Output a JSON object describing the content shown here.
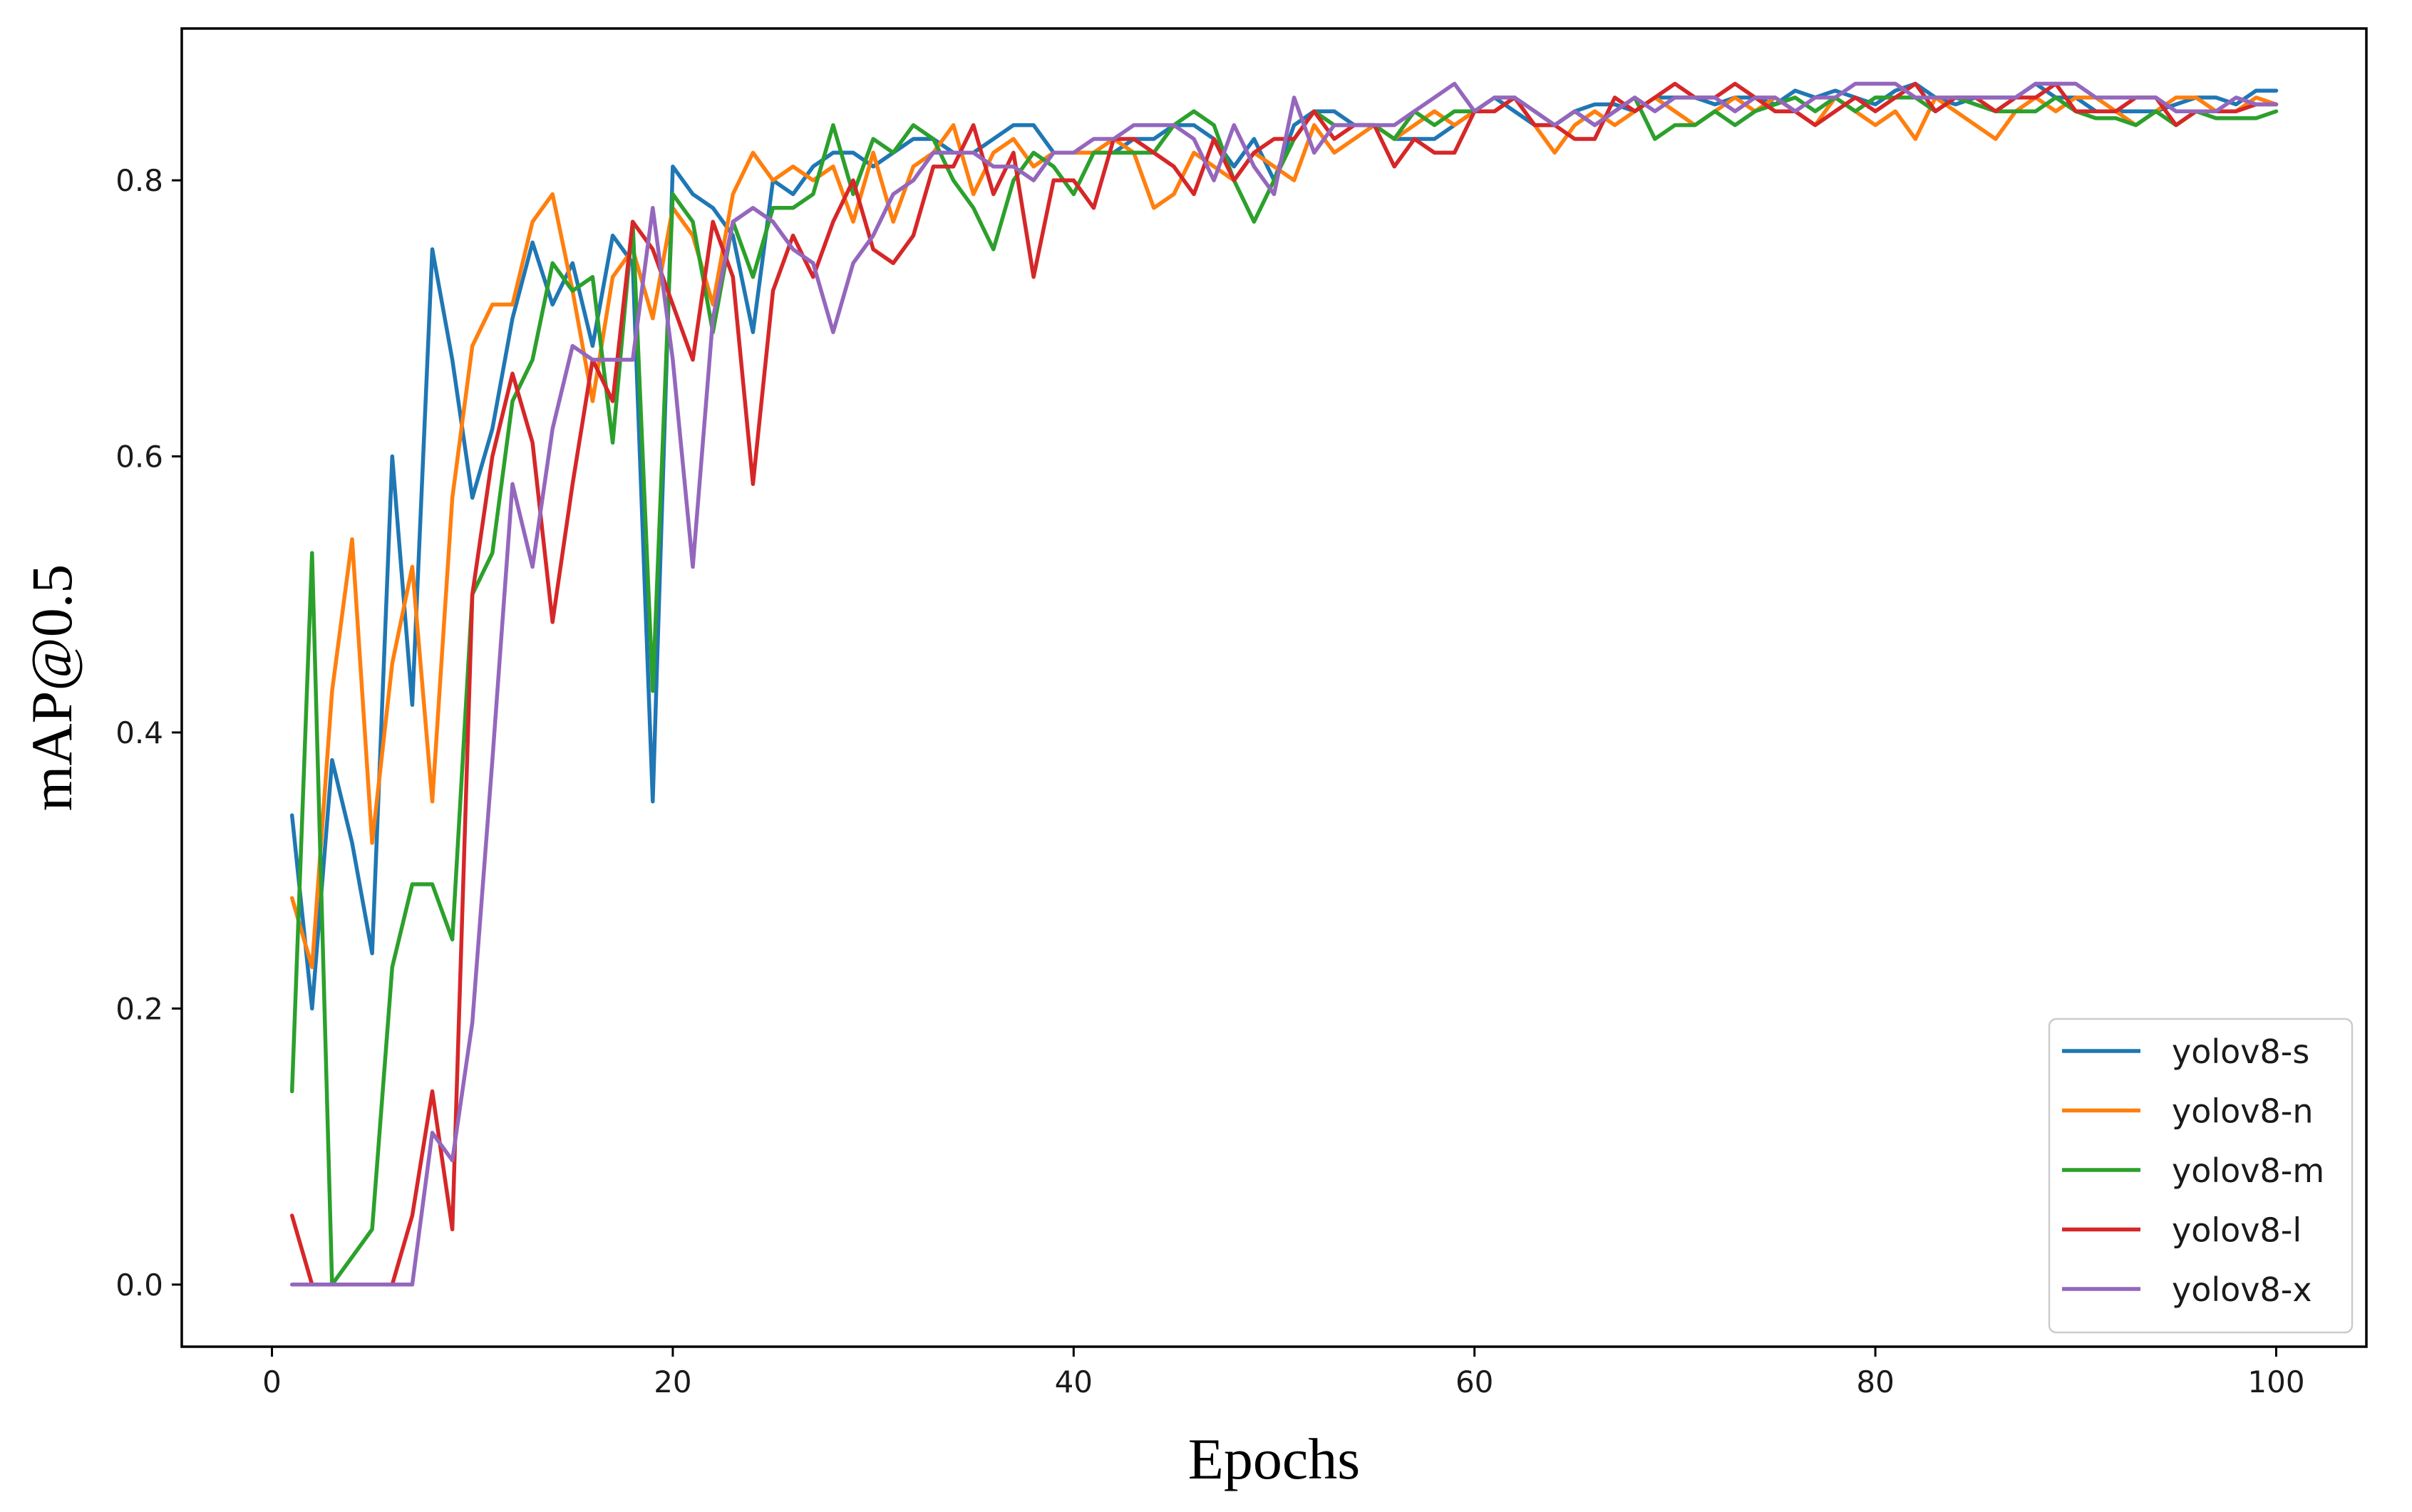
{
  "chart_data": {
    "type": "line",
    "title": "",
    "xlabel": "Epochs",
    "ylabel": "mAP@0.5",
    "xlim": [
      -4.5,
      104.5
    ],
    "ylim": [
      -0.045,
      0.91
    ],
    "xticks": [
      0,
      20,
      40,
      60,
      80,
      100
    ],
    "xtick_labels": [
      "0",
      "20",
      "40",
      "60",
      "80",
      "100"
    ],
    "yticks": [
      0.0,
      0.2,
      0.4,
      0.6,
      0.8
    ],
    "ytick_labels": [
      "0.0",
      "0.2",
      "0.4",
      "0.6",
      "0.8"
    ],
    "grid": false,
    "legend_position": "bottom-right",
    "series": [
      {
        "name": "yolov8-s",
        "color": "#1f77b4",
        "x": [
          1,
          2,
          3,
          4,
          5,
          6,
          7,
          8,
          9,
          10,
          11,
          12,
          13,
          14,
          15,
          16,
          17,
          18,
          19,
          20,
          21,
          22,
          23,
          24,
          25,
          26,
          27,
          28,
          29,
          30,
          31,
          32,
          33,
          34,
          35,
          36,
          37,
          38,
          39,
          40,
          41,
          42,
          43,
          44,
          45,
          46,
          47,
          48,
          49,
          50,
          51,
          52,
          53,
          54,
          55,
          56,
          57,
          58,
          59,
          60,
          61,
          62,
          63,
          64,
          65,
          66,
          67,
          68,
          69,
          70,
          71,
          72,
          73,
          74,
          75,
          76,
          77,
          78,
          79,
          80,
          81,
          82,
          83,
          84,
          85,
          86,
          87,
          88,
          89,
          90,
          91,
          92,
          93,
          94,
          95,
          96,
          97,
          98,
          99,
          100
        ],
        "values": [
          0.34,
          0.2,
          0.38,
          0.32,
          0.24,
          0.6,
          0.42,
          0.75,
          0.67,
          0.57,
          0.62,
          0.7,
          0.755,
          0.71,
          0.74,
          0.68,
          0.76,
          0.74,
          0.35,
          0.81,
          0.79,
          0.78,
          0.76,
          0.69,
          0.8,
          0.79,
          0.81,
          0.82,
          0.82,
          0.81,
          0.82,
          0.83,
          0.83,
          0.82,
          0.82,
          0.83,
          0.84,
          0.84,
          0.82,
          0.82,
          0.82,
          0.82,
          0.83,
          0.83,
          0.84,
          0.84,
          0.83,
          0.81,
          0.83,
          0.8,
          0.84,
          0.85,
          0.85,
          0.84,
          0.84,
          0.83,
          0.83,
          0.83,
          0.84,
          0.85,
          0.86,
          0.85,
          0.84,
          0.84,
          0.85,
          0.855,
          0.855,
          0.85,
          0.86,
          0.86,
          0.86,
          0.855,
          0.86,
          0.86,
          0.855,
          0.865,
          0.86,
          0.865,
          0.86,
          0.855,
          0.865,
          0.87,
          0.86,
          0.855,
          0.86,
          0.86,
          0.86,
          0.87,
          0.86,
          0.86,
          0.85,
          0.85,
          0.85,
          0.85,
          0.855,
          0.86,
          0.86,
          0.855,
          0.865,
          0.865
        ]
      },
      {
        "name": "yolov8-n",
        "color": "#ff7f0e",
        "x": [
          1,
          2,
          3,
          4,
          5,
          6,
          7,
          8,
          9,
          10,
          11,
          12,
          13,
          14,
          15,
          16,
          17,
          18,
          19,
          20,
          21,
          22,
          23,
          24,
          25,
          26,
          27,
          28,
          29,
          30,
          31,
          32,
          33,
          34,
          35,
          36,
          37,
          38,
          39,
          40,
          41,
          42,
          43,
          44,
          45,
          46,
          47,
          48,
          49,
          50,
          51,
          52,
          53,
          54,
          55,
          56,
          57,
          58,
          59,
          60,
          61,
          62,
          63,
          64,
          65,
          66,
          67,
          68,
          69,
          70,
          71,
          72,
          73,
          74,
          75,
          76,
          77,
          78,
          79,
          80,
          81,
          82,
          83,
          84,
          85,
          86,
          87,
          88,
          89,
          90,
          91,
          92,
          93,
          94,
          95,
          96,
          97,
          98,
          99,
          100
        ],
        "values": [
          0.28,
          0.23,
          0.43,
          0.54,
          0.32,
          0.45,
          0.52,
          0.35,
          0.57,
          0.68,
          0.71,
          0.71,
          0.77,
          0.79,
          0.72,
          0.64,
          0.73,
          0.75,
          0.7,
          0.78,
          0.76,
          0.71,
          0.79,
          0.82,
          0.8,
          0.81,
          0.8,
          0.81,
          0.77,
          0.82,
          0.77,
          0.81,
          0.82,
          0.84,
          0.79,
          0.82,
          0.83,
          0.81,
          0.82,
          0.82,
          0.82,
          0.83,
          0.82,
          0.78,
          0.79,
          0.82,
          0.81,
          0.8,
          0.82,
          0.81,
          0.8,
          0.84,
          0.82,
          0.83,
          0.84,
          0.83,
          0.84,
          0.85,
          0.84,
          0.85,
          0.85,
          0.86,
          0.84,
          0.82,
          0.84,
          0.85,
          0.84,
          0.85,
          0.86,
          0.85,
          0.84,
          0.85,
          0.86,
          0.85,
          0.86,
          0.85,
          0.84,
          0.86,
          0.85,
          0.84,
          0.85,
          0.83,
          0.86,
          0.85,
          0.84,
          0.83,
          0.85,
          0.86,
          0.85,
          0.86,
          0.86,
          0.85,
          0.84,
          0.85,
          0.86,
          0.86,
          0.85,
          0.85,
          0.86,
          0.855
        ]
      },
      {
        "name": "yolov8-m",
        "color": "#2ca02c",
        "x": [
          1,
          2,
          3,
          4,
          5,
          6,
          7,
          8,
          9,
          10,
          11,
          12,
          13,
          14,
          15,
          16,
          17,
          18,
          19,
          20,
          21,
          22,
          23,
          24,
          25,
          26,
          27,
          28,
          29,
          30,
          31,
          32,
          33,
          34,
          35,
          36,
          37,
          38,
          39,
          40,
          41,
          42,
          43,
          44,
          45,
          46,
          47,
          48,
          49,
          50,
          51,
          52,
          53,
          54,
          55,
          56,
          57,
          58,
          59,
          60,
          61,
          62,
          63,
          64,
          65,
          66,
          67,
          68,
          69,
          70,
          71,
          72,
          73,
          74,
          75,
          76,
          77,
          78,
          79,
          80,
          81,
          82,
          83,
          84,
          85,
          86,
          87,
          88,
          89,
          90,
          91,
          92,
          93,
          94,
          95,
          96,
          97,
          98,
          99,
          100
        ],
        "values": [
          0.14,
          0.53,
          0.0,
          0.02,
          0.04,
          0.23,
          0.29,
          0.29,
          0.25,
          0.5,
          0.53,
          0.64,
          0.67,
          0.74,
          0.72,
          0.73,
          0.61,
          0.77,
          0.43,
          0.79,
          0.77,
          0.69,
          0.77,
          0.73,
          0.78,
          0.78,
          0.79,
          0.84,
          0.79,
          0.83,
          0.82,
          0.84,
          0.83,
          0.8,
          0.78,
          0.75,
          0.8,
          0.82,
          0.81,
          0.79,
          0.82,
          0.82,
          0.82,
          0.82,
          0.84,
          0.85,
          0.84,
          0.8,
          0.77,
          0.8,
          0.83,
          0.85,
          0.84,
          0.84,
          0.84,
          0.83,
          0.85,
          0.84,
          0.85,
          0.85,
          0.85,
          0.86,
          0.85,
          0.84,
          0.85,
          0.84,
          0.85,
          0.86,
          0.83,
          0.84,
          0.84,
          0.85,
          0.84,
          0.85,
          0.855,
          0.86,
          0.85,
          0.86,
          0.85,
          0.86,
          0.86,
          0.86,
          0.85,
          0.86,
          0.855,
          0.85,
          0.85,
          0.85,
          0.86,
          0.85,
          0.845,
          0.845,
          0.84,
          0.85,
          0.84,
          0.85,
          0.845,
          0.845,
          0.845,
          0.85
        ]
      },
      {
        "name": "yolov8-l",
        "color": "#d62728",
        "x": [
          1,
          2,
          3,
          4,
          5,
          6,
          7,
          8,
          9,
          10,
          11,
          12,
          13,
          14,
          15,
          16,
          17,
          18,
          19,
          20,
          21,
          22,
          23,
          24,
          25,
          26,
          27,
          28,
          29,
          30,
          31,
          32,
          33,
          34,
          35,
          36,
          37,
          38,
          39,
          40,
          41,
          42,
          43,
          44,
          45,
          46,
          47,
          48,
          49,
          50,
          51,
          52,
          53,
          54,
          55,
          56,
          57,
          58,
          59,
          60,
          61,
          62,
          63,
          64,
          65,
          66,
          67,
          68,
          69,
          70,
          71,
          72,
          73,
          74,
          75,
          76,
          77,
          78,
          79,
          80,
          81,
          82,
          83,
          84,
          85,
          86,
          87,
          88,
          89,
          90,
          91,
          92,
          93,
          94,
          95,
          96,
          97,
          98,
          99,
          100
        ],
        "values": [
          0.05,
          0.0,
          0.0,
          0.0,
          0.0,
          0.0,
          0.05,
          0.14,
          0.04,
          0.5,
          0.6,
          0.66,
          0.61,
          0.48,
          0.58,
          0.67,
          0.64,
          0.77,
          0.75,
          0.71,
          0.67,
          0.77,
          0.73,
          0.58,
          0.72,
          0.76,
          0.73,
          0.77,
          0.8,
          0.75,
          0.74,
          0.76,
          0.81,
          0.81,
          0.84,
          0.79,
          0.82,
          0.73,
          0.8,
          0.8,
          0.78,
          0.83,
          0.83,
          0.82,
          0.81,
          0.79,
          0.83,
          0.8,
          0.82,
          0.83,
          0.83,
          0.85,
          0.83,
          0.84,
          0.84,
          0.81,
          0.83,
          0.82,
          0.82,
          0.85,
          0.85,
          0.86,
          0.84,
          0.84,
          0.83,
          0.83,
          0.86,
          0.85,
          0.86,
          0.87,
          0.86,
          0.86,
          0.87,
          0.86,
          0.85,
          0.85,
          0.84,
          0.85,
          0.86,
          0.85,
          0.86,
          0.87,
          0.85,
          0.86,
          0.86,
          0.85,
          0.86,
          0.86,
          0.87,
          0.85,
          0.85,
          0.85,
          0.86,
          0.86,
          0.84,
          0.85,
          0.85,
          0.85,
          0.855,
          0.855
        ]
      },
      {
        "name": "yolov8-x",
        "color": "#9467bd",
        "x": [
          1,
          2,
          3,
          4,
          5,
          6,
          7,
          8,
          9,
          10,
          11,
          12,
          13,
          14,
          15,
          16,
          17,
          18,
          19,
          20,
          21,
          22,
          23,
          24,
          25,
          26,
          27,
          28,
          29,
          30,
          31,
          32,
          33,
          34,
          35,
          36,
          37,
          38,
          39,
          40,
          41,
          42,
          43,
          44,
          45,
          46,
          47,
          48,
          49,
          50,
          51,
          52,
          53,
          54,
          55,
          56,
          57,
          58,
          59,
          60,
          61,
          62,
          63,
          64,
          65,
          66,
          67,
          68,
          69,
          70,
          71,
          72,
          73,
          74,
          75,
          76,
          77,
          78,
          79,
          80,
          81,
          82,
          83,
          84,
          85,
          86,
          87,
          88,
          89,
          90,
          91,
          92,
          93,
          94,
          95,
          96,
          97,
          98,
          99,
          100
        ],
        "values": [
          0.0,
          0.0,
          0.0,
          0.0,
          0.0,
          0.0,
          0.0,
          0.11,
          0.09,
          0.19,
          0.38,
          0.58,
          0.52,
          0.62,
          0.68,
          0.67,
          0.67,
          0.67,
          0.78,
          0.67,
          0.52,
          0.7,
          0.77,
          0.78,
          0.77,
          0.75,
          0.74,
          0.69,
          0.74,
          0.76,
          0.79,
          0.8,
          0.82,
          0.82,
          0.82,
          0.81,
          0.81,
          0.8,
          0.82,
          0.82,
          0.83,
          0.83,
          0.84,
          0.84,
          0.84,
          0.83,
          0.8,
          0.84,
          0.81,
          0.79,
          0.86,
          0.82,
          0.84,
          0.84,
          0.84,
          0.84,
          0.85,
          0.86,
          0.87,
          0.85,
          0.86,
          0.86,
          0.85,
          0.84,
          0.85,
          0.84,
          0.85,
          0.86,
          0.85,
          0.86,
          0.86,
          0.86,
          0.85,
          0.86,
          0.86,
          0.85,
          0.86,
          0.86,
          0.87,
          0.87,
          0.87,
          0.86,
          0.86,
          0.86,
          0.86,
          0.86,
          0.86,
          0.87,
          0.87,
          0.87,
          0.86,
          0.86,
          0.86,
          0.86,
          0.85,
          0.85,
          0.85,
          0.86,
          0.855,
          0.855
        ]
      }
    ]
  }
}
